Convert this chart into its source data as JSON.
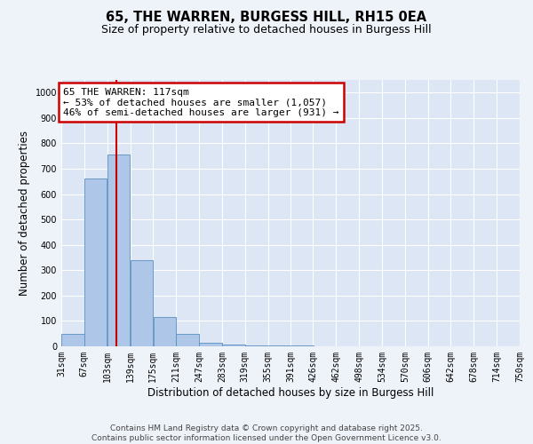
{
  "title_line1": "65, THE WARREN, BURGESS HILL, RH15 0EA",
  "title_line2": "Size of property relative to detached houses in Burgess Hill",
  "xlabel": "Distribution of detached houses by size in Burgess Hill",
  "ylabel": "Number of detached properties",
  "bin_edges": [
    31,
    67,
    103,
    139,
    175,
    211,
    247,
    283,
    319,
    355,
    391,
    426,
    462,
    498,
    534,
    570,
    606,
    642,
    678,
    714,
    750
  ],
  "bar_heights": [
    50,
    660,
    755,
    340,
    115,
    50,
    15,
    8,
    5,
    3,
    2,
    1,
    1,
    0,
    0,
    0,
    0,
    0,
    0,
    0
  ],
  "bar_color": "#aec6e8",
  "bar_edge_color": "#5a8fc0",
  "property_size": 117,
  "annotation_text": "65 THE WARREN: 117sqm\n← 53% of detached houses are smaller (1,057)\n46% of semi-detached houses are larger (931) →",
  "annotation_box_color": "#ffffff",
  "annotation_border_color": "#cc0000",
  "vline_color": "#cc0000",
  "ylim": [
    0,
    1050
  ],
  "yticks": [
    0,
    100,
    200,
    300,
    400,
    500,
    600,
    700,
    800,
    900,
    1000
  ],
  "footer_line1": "Contains HM Land Registry data © Crown copyright and database right 2025.",
  "footer_line2": "Contains public sector information licensed under the Open Government Licence v3.0.",
  "bg_color": "#eef2f9",
  "plot_bg_color": "#dce6f5",
  "grid_color": "#ffffff",
  "title_fontsize": 10.5,
  "subtitle_fontsize": 9,
  "tick_fontsize": 7,
  "label_fontsize": 8.5,
  "annotation_fontsize": 8,
  "footer_fontsize": 6.5
}
